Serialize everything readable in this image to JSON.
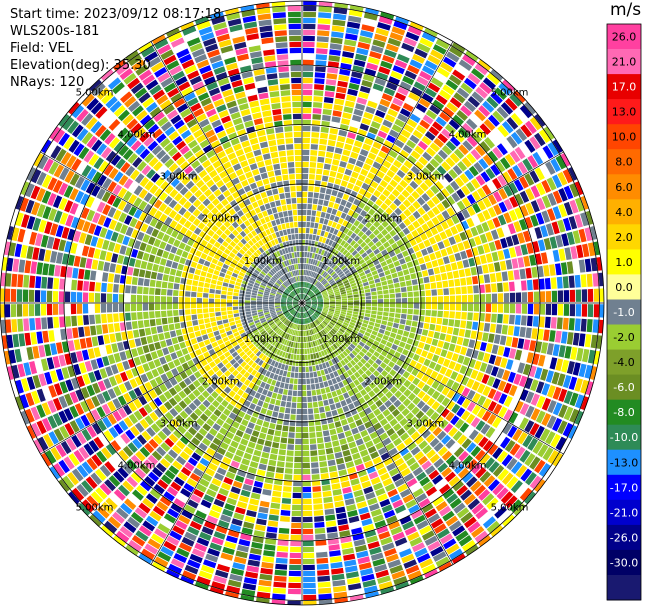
{
  "info": {
    "start_time": "Start time: 2023/09/12 08:17:18",
    "instrument": "WLS200s-181",
    "field": "Field: VEL",
    "elevation": "Elevation(deg): 35.30",
    "nrays": "NRays: 120"
  },
  "colorbar": {
    "unit": "m/s",
    "ticks": [
      "26.0",
      "21.0",
      "17.0",
      "13.0",
      "10.0",
      "8.0",
      "6.0",
      "4.0",
      "2.0",
      "1.0",
      "0.0",
      "-1.0",
      "-2.0",
      "-4.0",
      "-6.0",
      "-8.0",
      "-10.0",
      "-13.0",
      "-17.0",
      "-21.0",
      "-26.0",
      "-30.0"
    ],
    "colors": [
      "#ff40a0",
      "#ff69b4",
      "#e80000",
      "#ff1a1a",
      "#ff4500",
      "#ff6a00",
      "#ff8c00",
      "#ffb000",
      "#ffd700",
      "#ffff00",
      "#ffff99",
      "#708090",
      "#9acd32",
      "#7ea02a",
      "#6b8e23",
      "#228b22",
      "#2e8b57",
      "#1e90ff",
      "#0000ff",
      "#0000cd",
      "#00008b",
      "#000066",
      "#191970"
    ]
  },
  "chart_data": {
    "type": "ppi",
    "field": "VEL",
    "units": "m/s",
    "nrays": 120,
    "elevation_deg": 35.3,
    "range_labels": [
      "1.00km",
      "2.00km",
      "3.00km",
      "4.00km",
      "5.00km"
    ],
    "vmin": -30.0,
    "vmax": 26.0
  }
}
